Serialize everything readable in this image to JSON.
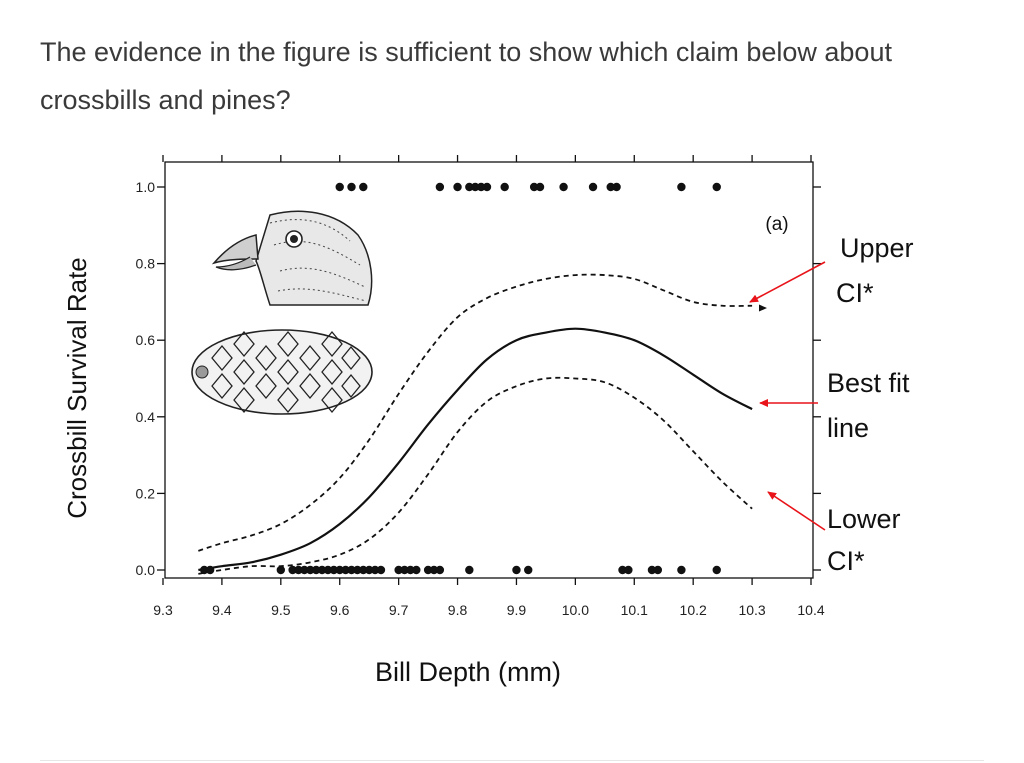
{
  "question": {
    "text": "The evidence in the figure is sufficient to show which claim below about crossbills and pines?"
  },
  "figure": {
    "panel_label": "(a)",
    "illustrations": [
      "crossbill-head",
      "pine-cone"
    ],
    "annotations": {
      "upper_line1": "Upper",
      "upper_line2": "CI*",
      "best_line1": "Best fit",
      "best_line2": "line",
      "lower_line1": "Lower",
      "lower_line2": "CI*"
    },
    "arrow_color": "#e8141a"
  },
  "chart_data": {
    "type": "line",
    "title": "",
    "xlabel": "Bill Depth (mm)",
    "ylabel": "Crossbill Survival Rate",
    "xlim": [
      9.3,
      10.4
    ],
    "ylim": [
      0,
      1.0
    ],
    "xticks": [
      "9.3",
      "9.4",
      "9.5",
      "9.6",
      "9.7",
      "9.8",
      "9.9",
      "10.0",
      "10.1",
      "10.2",
      "10.3",
      "10.4"
    ],
    "yticks": [
      "0.0",
      "0.2",
      "0.4",
      "0.6",
      "0.8",
      "1.0"
    ],
    "grid": false,
    "series": [
      {
        "name": "Upper CI*",
        "style": "dashed",
        "x": [
          9.36,
          9.4,
          9.45,
          9.5,
          9.55,
          9.6,
          9.65,
          9.7,
          9.75,
          9.8,
          9.85,
          9.9,
          9.95,
          10.0,
          10.05,
          10.1,
          10.15,
          10.2,
          10.25,
          10.3
        ],
        "y": [
          0.05,
          0.07,
          0.09,
          0.12,
          0.17,
          0.24,
          0.34,
          0.46,
          0.57,
          0.66,
          0.71,
          0.74,
          0.76,
          0.77,
          0.77,
          0.76,
          0.73,
          0.7,
          0.69,
          0.69
        ]
      },
      {
        "name": "Best fit line",
        "style": "solid",
        "x": [
          9.36,
          9.4,
          9.45,
          9.5,
          9.55,
          9.6,
          9.65,
          9.7,
          9.75,
          9.8,
          9.85,
          9.9,
          9.95,
          10.0,
          10.05,
          10.1,
          10.15,
          10.2,
          10.25,
          10.3
        ],
        "y": [
          0.0,
          0.01,
          0.02,
          0.04,
          0.07,
          0.12,
          0.19,
          0.28,
          0.38,
          0.47,
          0.55,
          0.6,
          0.62,
          0.63,
          0.62,
          0.6,
          0.56,
          0.51,
          0.46,
          0.42
        ]
      },
      {
        "name": "Lower CI*",
        "style": "dashed",
        "x": [
          9.36,
          9.4,
          9.45,
          9.5,
          9.55,
          9.6,
          9.65,
          9.7,
          9.75,
          9.8,
          9.85,
          9.9,
          9.95,
          10.0,
          10.05,
          10.1,
          10.15,
          10.2,
          10.25,
          10.3
        ],
        "y": [
          -0.01,
          0.0,
          0.01,
          0.01,
          0.02,
          0.04,
          0.08,
          0.15,
          0.25,
          0.36,
          0.44,
          0.48,
          0.5,
          0.5,
          0.49,
          0.45,
          0.39,
          0.31,
          0.23,
          0.16
        ]
      }
    ],
    "points_survived": {
      "y": 1.0,
      "x": [
        9.6,
        9.62,
        9.64,
        9.77,
        9.8,
        9.82,
        9.83,
        9.84,
        9.85,
        9.88,
        9.93,
        9.94,
        9.98,
        10.03,
        10.06,
        10.07,
        10.18,
        10.24
      ]
    },
    "points_died": {
      "y": 0.0,
      "x": [
        9.37,
        9.38,
        9.5,
        9.52,
        9.53,
        9.54,
        9.55,
        9.56,
        9.57,
        9.58,
        9.59,
        9.6,
        9.61,
        9.62,
        9.63,
        9.64,
        9.65,
        9.66,
        9.67,
        9.7,
        9.71,
        9.72,
        9.73,
        9.75,
        9.76,
        9.77,
        9.82,
        9.9,
        9.92,
        10.08,
        10.09,
        10.13,
        10.14,
        10.18,
        10.24
      ]
    }
  }
}
